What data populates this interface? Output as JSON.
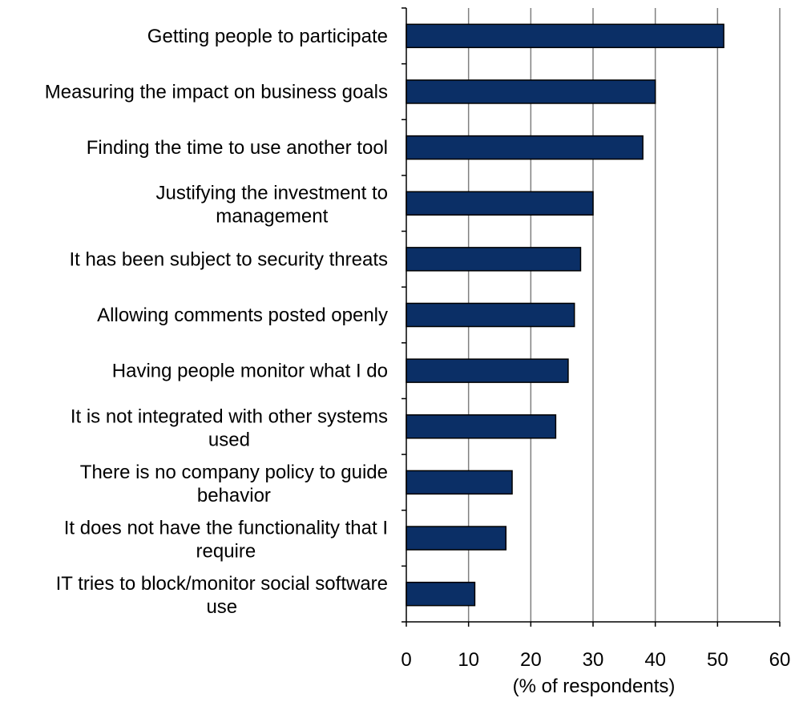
{
  "chart_data": {
    "type": "bar",
    "orientation": "horizontal",
    "categories": [
      [
        "Getting people to participate"
      ],
      [
        "Measuring the impact on business goals"
      ],
      [
        "Finding the time to use another tool"
      ],
      [
        "Justifying the investment to",
        "management"
      ],
      [
        "It has been subject to security threats"
      ],
      [
        "Allowing comments posted openly"
      ],
      [
        "Having people monitor what I do"
      ],
      [
        "It is not integrated with other systems",
        "used"
      ],
      [
        "There is no company policy to guide",
        "behavior"
      ],
      [
        "It does not have the functionality that I",
        "require"
      ],
      [
        "IT tries to block/monitor social software",
        "use"
      ]
    ],
    "values": [
      51,
      40,
      38,
      30,
      28,
      27,
      26,
      24,
      17,
      16,
      11
    ],
    "xlabel": "(% of respondents)",
    "ylabel": "",
    "title": "",
    "xlim": [
      0,
      60
    ],
    "xticks": [
      0,
      10,
      20,
      30,
      40,
      50,
      60
    ],
    "grid": true,
    "legend": "none",
    "colors": {
      "bar_fill": "#0b2f66",
      "bar_stroke": "#000000",
      "grid": "#808080",
      "axis": "#000000"
    }
  }
}
